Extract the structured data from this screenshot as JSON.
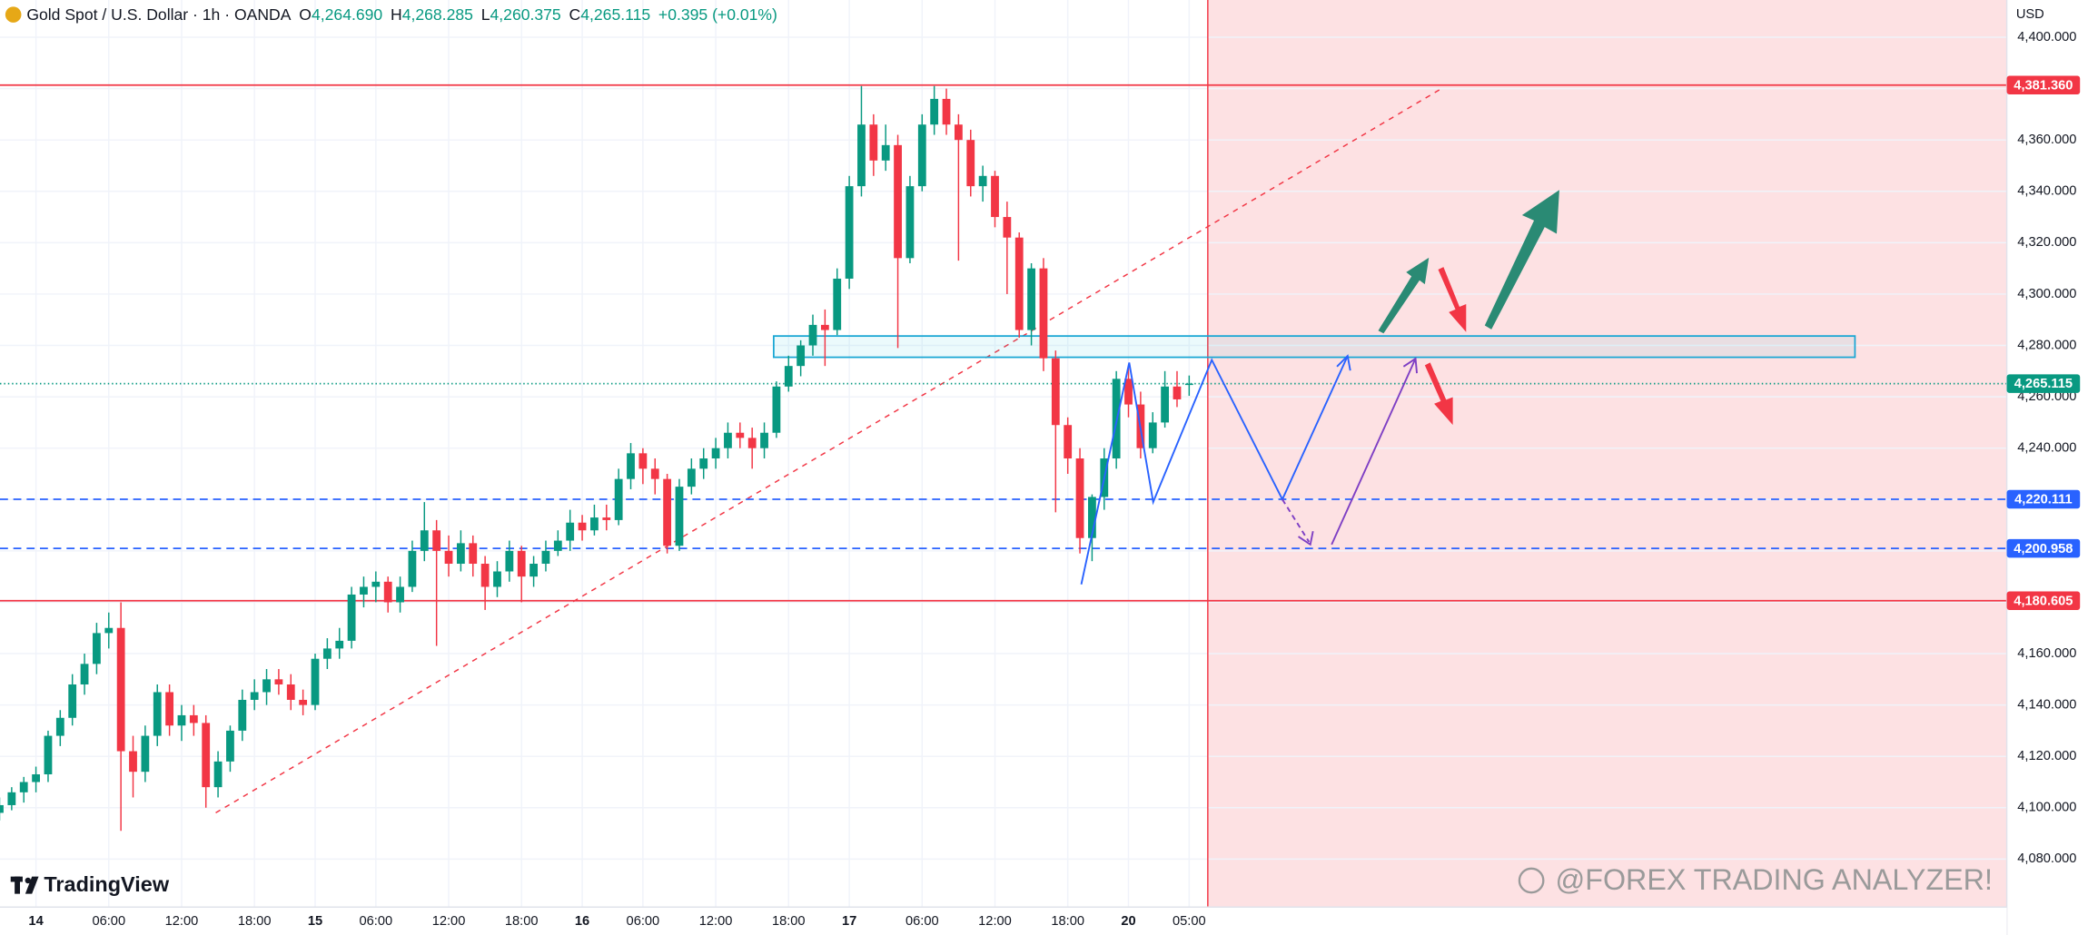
{
  "header": {
    "symbol": "Gold Spot / U.S. Dollar · 1h · OANDA",
    "ohlc": [
      {
        "label": "O",
        "value": "4,264.690"
      },
      {
        "label": "H",
        "value": "4,268.285"
      },
      {
        "label": "L",
        "value": "4,260.375"
      },
      {
        "label": "C",
        "value": "4,265.115"
      }
    ],
    "change": "+0.395 (+0.01%)"
  },
  "branding": "TradingView",
  "watermark": "@FOREX TRADING ANALYZER!",
  "chart_data": {
    "type": "candlestick",
    "currency": "USD",
    "categories": [
      null,
      null,
      null,
      "14",
      null,
      null,
      null,
      null,
      null,
      "06:00",
      null,
      null,
      null,
      null,
      null,
      "12:00",
      null,
      null,
      null,
      null,
      null,
      "18:00",
      null,
      null,
      null,
      null,
      "15",
      null,
      null,
      null,
      null,
      "06:00",
      null,
      null,
      null,
      null,
      null,
      "12:00",
      null,
      null,
      null,
      null,
      null,
      "18:00",
      null,
      null,
      null,
      null,
      "16",
      null,
      null,
      null,
      null,
      "06:00",
      null,
      null,
      null,
      null,
      null,
      "12:00",
      null,
      null,
      null,
      null,
      null,
      "18:00",
      null,
      null,
      null,
      null,
      "17",
      null,
      null,
      null,
      null,
      null,
      "06:00",
      null,
      null,
      null,
      null,
      null,
      "12:00",
      null,
      null,
      null,
      null,
      null,
      "18:00",
      null,
      null,
      null,
      null,
      "20",
      null,
      null,
      null,
      null,
      "05:00"
    ],
    "open": [
      4098,
      4101,
      4106,
      4110,
      4113,
      4128,
      4135,
      4148,
      4156,
      4168,
      4170,
      4122,
      4114,
      4128,
      4145,
      4132,
      4136,
      4133,
      4108,
      4118,
      4130,
      4142,
      4145,
      4150,
      4148,
      4142,
      4140,
      4158,
      4162,
      4165,
      4183,
      4186,
      4188,
      4180,
      4186,
      4200,
      4208,
      4200,
      4195,
      4203,
      4195,
      4186,
      4192,
      4200,
      4190,
      4195,
      4200,
      4204,
      4211,
      4208,
      4213,
      4212,
      4228,
      4238,
      4232,
      4228,
      4202,
      4225,
      4232,
      4236,
      4240,
      4246,
      4244,
      4240,
      4246,
      4264,
      4272,
      4280,
      4288,
      4286,
      4306,
      4342,
      4366,
      4352,
      4358,
      4314,
      4342,
      4366,
      4376,
      4366,
      4360,
      4342,
      4346,
      4330,
      4322,
      4286,
      4310,
      4275,
      4249,
      4236,
      4205,
      4221,
      4236,
      4267,
      4257,
      4240,
      4250,
      4264,
      4264.69
    ],
    "high": [
      4104,
      4108,
      4112,
      4116,
      4130,
      4138,
      4152,
      4160,
      4172,
      4176,
      4180,
      4128,
      4132,
      4148,
      4148,
      4140,
      4140,
      4136,
      4122,
      4132,
      4146,
      4150,
      4154,
      4154,
      4152,
      4146,
      4160,
      4166,
      4170,
      4186,
      4190,
      4192,
      4190,
      4190,
      4204,
      4219,
      4212,
      4206,
      4208,
      4206,
      4198,
      4196,
      4204,
      4202,
      4198,
      4204,
      4208,
      4216,
      4214,
      4218,
      4218,
      4232,
      4242,
      4240,
      4236,
      4230,
      4228,
      4236,
      4240,
      4244,
      4250,
      4250,
      4248,
      4250,
      4266,
      4276,
      4282,
      4292,
      4294,
      4310,
      4346,
      4381,
      4370,
      4366,
      4362,
      4346,
      4370,
      4381,
      4380,
      4370,
      4364,
      4350,
      4348,
      4336,
      4324,
      4312,
      4314,
      4278,
      4252,
      4240,
      4222,
      4240,
      4270,
      4272,
      4262,
      4254,
      4270,
      4270,
      4268.285
    ],
    "low": [
      4095,
      4099,
      4102,
      4106,
      4110,
      4124,
      4132,
      4144,
      4152,
      4162,
      4091,
      4104,
      4110,
      4124,
      4128,
      4126,
      4128,
      4100,
      4104,
      4114,
      4126,
      4138,
      4140,
      4144,
      4138,
      4136,
      4138,
      4154,
      4158,
      4162,
      4178,
      4180,
      4176,
      4176,
      4184,
      4196,
      4163,
      4190,
      4192,
      4190,
      4177,
      4182,
      4188,
      4180,
      4186,
      4192,
      4198,
      4200,
      4204,
      4206,
      4208,
      4210,
      4224,
      4226,
      4222,
      4199,
      4200,
      4222,
      4228,
      4232,
      4236,
      4240,
      4232,
      4236,
      4244,
      4262,
      4268,
      4276,
      4272,
      4284,
      4302,
      4338,
      4346,
      4348,
      4279,
      4312,
      4340,
      4362,
      4362,
      4313,
      4338,
      4336,
      4326,
      4300,
      4283,
      4280,
      4270,
      4215,
      4230,
      4199,
      4196,
      4216,
      4232,
      4252,
      4236,
      4238,
      4248,
      4256,
      4260.375
    ],
    "close": [
      4101,
      4106,
      4110,
      4113,
      4128,
      4135,
      4148,
      4156,
      4168,
      4170,
      4122,
      4114,
      4128,
      4145,
      4132,
      4136,
      4133,
      4108,
      4118,
      4130,
      4142,
      4145,
      4150,
      4148,
      4142,
      4140,
      4158,
      4162,
      4165,
      4183,
      4186,
      4188,
      4180,
      4186,
      4200,
      4208,
      4200,
      4195,
      4203,
      4195,
      4186,
      4192,
      4200,
      4190,
      4195,
      4200,
      4204,
      4211,
      4208,
      4213,
      4212,
      4228,
      4238,
      4232,
      4228,
      4202,
      4225,
      4232,
      4236,
      4240,
      4246,
      4244,
      4240,
      4246,
      4264,
      4272,
      4280,
      4288,
      4286,
      4306,
      4342,
      4366,
      4352,
      4358,
      4314,
      4342,
      4366,
      4376,
      4366,
      4360,
      4342,
      4346,
      4330,
      4322,
      4286,
      4310,
      4275,
      4249,
      4236,
      4205,
      4221,
      4236,
      4267,
      4257,
      4240,
      4250,
      4264,
      4259,
      4265.115
    ],
    "up_color": "#089981",
    "down_color": "#f23645",
    "ylim": [
      4061.3,
      4414.5
    ],
    "yticks": [
      {
        "value": 4080,
        "label": "4,080.000"
      },
      {
        "value": 4100,
        "label": "4,100.000"
      },
      {
        "value": 4120,
        "label": "4,120.000"
      },
      {
        "value": 4140,
        "label": "4,140.000"
      },
      {
        "value": 4160,
        "label": "4,160.000"
      },
      {
        "value": 4180,
        "label": "4,180.000"
      },
      {
        "value": 4200,
        "label": "4,200.000"
      },
      {
        "value": 4220,
        "label": "4,220.000"
      },
      {
        "value": 4240,
        "label": "4,240.000"
      },
      {
        "value": 4260,
        "label": "4,260.000"
      },
      {
        "value": 4280,
        "label": "4,280.000"
      },
      {
        "value": 4300,
        "label": "4,300.000"
      },
      {
        "value": 4320,
        "label": "4,320.000"
      },
      {
        "value": 4340,
        "label": "4,340.000"
      },
      {
        "value": 4360,
        "label": "4,360.000"
      },
      {
        "value": 4380,
        "label": "4,380.000"
      },
      {
        "value": 4400,
        "label": "4,400.000"
      }
    ],
    "grid": true,
    "levels": [
      {
        "value": 4381.36,
        "label": "4,381.360",
        "color": "#f23645",
        "style": "solid"
      },
      {
        "value": 4265.115,
        "label": "4,265.115",
        "color": "#089981",
        "style": "dotted"
      },
      {
        "value": 4220.111,
        "label": "4,220.111",
        "color": "#2962ff",
        "style": "dashed"
      },
      {
        "value": 4200.958,
        "label": "4,200.958",
        "color": "#2962ff",
        "style": "dashed"
      },
      {
        "value": 4180.605,
        "label": "4,180.605",
        "color": "#f23645",
        "style": "solid"
      }
    ]
  }
}
